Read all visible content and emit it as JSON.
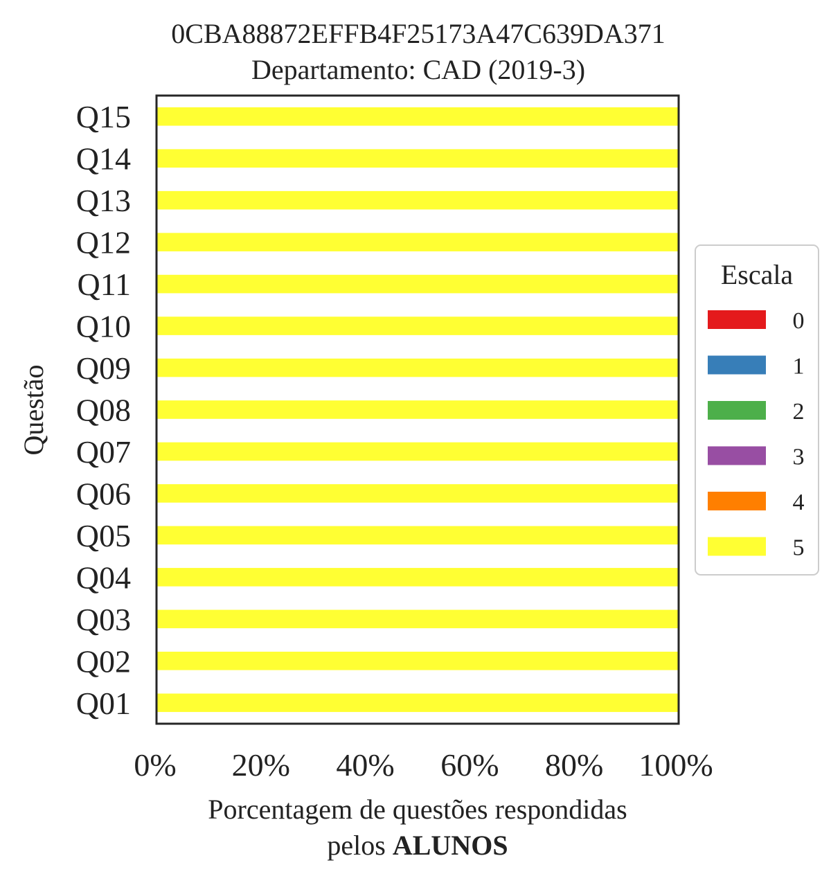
{
  "chart_data": {
    "type": "bar",
    "orientation": "horizontal",
    "stacked": true,
    "title_line1": "0CBA88872EFFB4F25173A47C639DA371",
    "title_line2": "Departamento: CAD (2019-3)",
    "ylabel": "Questão",
    "xlabel_line1": "Porcentagem de questões respondidas",
    "xlabel_prefix": "pelos ",
    "xlabel_bold": "ALUNOS",
    "xlim": [
      0,
      100
    ],
    "xticks": [
      "0%",
      "20%",
      "40%",
      "60%",
      "80%",
      "100%"
    ],
    "grid": false,
    "legend_position": "right",
    "categories": [
      "Q01",
      "Q02",
      "Q03",
      "Q04",
      "Q05",
      "Q06",
      "Q07",
      "Q08",
      "Q09",
      "Q10",
      "Q11",
      "Q12",
      "Q13",
      "Q14",
      "Q15"
    ],
    "legend": {
      "title": "Escala",
      "entries": [
        {
          "label": "0",
          "color": "#e41a1c"
        },
        {
          "label": "1",
          "color": "#377eb8"
        },
        {
          "label": "2",
          "color": "#4daf4a"
        },
        {
          "label": "3",
          "color": "#984ea3"
        },
        {
          "label": "4",
          "color": "#ff7f00"
        },
        {
          "label": "5",
          "color": "#ffff33"
        }
      ]
    },
    "series": [
      {
        "name": "0",
        "values": [
          0,
          0,
          0,
          0,
          0,
          0,
          0,
          0,
          0,
          0,
          0,
          0,
          0,
          0,
          0
        ]
      },
      {
        "name": "1",
        "values": [
          0,
          0,
          0,
          0,
          0,
          0,
          0,
          0,
          0,
          0,
          0,
          0,
          0,
          0,
          0
        ]
      },
      {
        "name": "2",
        "values": [
          0,
          0,
          0,
          0,
          0,
          0,
          0,
          0,
          0,
          0,
          0,
          0,
          0,
          0,
          0
        ]
      },
      {
        "name": "3",
        "values": [
          0,
          0,
          0,
          0,
          0,
          0,
          0,
          0,
          0,
          0,
          0,
          0,
          0,
          0,
          0
        ]
      },
      {
        "name": "4",
        "values": [
          0,
          0,
          0,
          0,
          0,
          0,
          0,
          0,
          0,
          0,
          0,
          0,
          0,
          0,
          0
        ]
      },
      {
        "name": "5",
        "values": [
          100,
          100,
          100,
          100,
          100,
          100,
          100,
          100,
          100,
          100,
          100,
          100,
          100,
          100,
          100
        ]
      }
    ]
  }
}
